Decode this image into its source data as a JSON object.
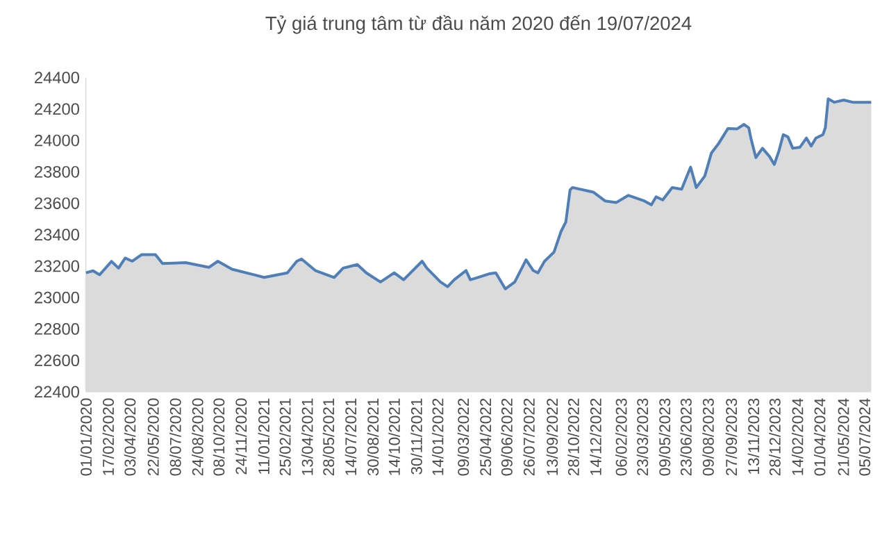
{
  "chart_data": {
    "type": "area",
    "title": "Tỷ giá trung tâm từ đầu năm 2020 đến 19/07/2024",
    "x": [
      "2020-01-01",
      "2020-01-16",
      "2020-01-30",
      "2020-02-24",
      "2020-03-10",
      "2020-03-24",
      "2020-04-08",
      "2020-04-28",
      "2020-05-27",
      "2020-06-11",
      "2020-07-30",
      "2020-09-17",
      "2020-10-06",
      "2020-11-05",
      "2020-12-24",
      "2021-01-12",
      "2021-03-02",
      "2021-03-22",
      "2021-04-01",
      "2021-04-30",
      "2021-06-09",
      "2021-06-28",
      "2021-07-28",
      "2021-08-16",
      "2021-09-15",
      "2021-10-14",
      "2021-11-03",
      "2021-12-12",
      "2021-12-22",
      "2022-01-20",
      "2022-02-04",
      "2022-02-18",
      "2022-03-15",
      "2022-03-24",
      "2022-04-03",
      "2022-05-03",
      "2022-05-17",
      "2022-06-06",
      "2022-06-26",
      "2022-07-20",
      "2022-08-04",
      "2022-08-14",
      "2022-08-28",
      "2022-09-17",
      "2022-10-02",
      "2022-10-12",
      "2022-10-21",
      "2022-10-26",
      "2022-12-09",
      "2023-01-03",
      "2023-01-27",
      "2023-02-21",
      "2023-03-27",
      "2023-04-11",
      "2023-04-21",
      "2023-05-05",
      "2023-05-25",
      "2023-06-14",
      "2023-07-03",
      "2023-07-15",
      "2023-08-02",
      "2023-08-16",
      "2023-08-31",
      "2023-09-20",
      "2023-10-09",
      "2023-10-24",
      "2023-11-03",
      "2023-11-08",
      "2023-11-18",
      "2023-12-02",
      "2023-12-17",
      "2023-12-27",
      "2024-01-06",
      "2024-01-15",
      "2024-01-25",
      "2024-02-04",
      "2024-02-19",
      "2024-03-04",
      "2024-03-14",
      "2024-03-24",
      "2024-04-08",
      "2024-04-13",
      "2024-04-19",
      "2024-05-02",
      "2024-05-22",
      "2024-06-10",
      "2024-07-15",
      "2024-07-19"
    ],
    "series": [
      {
        "color": "#4f7fb8",
        "values": [
          23157,
          23170,
          23145,
          23230,
          23187,
          23251,
          23231,
          23273,
          23273,
          23216,
          23222,
          23192,
          23231,
          23180,
          23143,
          23128,
          23157,
          23231,
          23245,
          23172,
          23128,
          23187,
          23210,
          23157,
          23099,
          23157,
          23113,
          23231,
          23187,
          23099,
          23069,
          23113,
          23172,
          23113,
          23122,
          23151,
          23157,
          23055,
          23099,
          23240,
          23172,
          23157,
          23231,
          23289,
          23421,
          23480,
          23685,
          23700,
          23671,
          23615,
          23605,
          23650,
          23615,
          23590,
          23641,
          23621,
          23700,
          23690,
          23830,
          23700,
          23773,
          23920,
          23979,
          24076,
          24073,
          24102,
          24081,
          24008,
          23891,
          23950,
          23897,
          23847,
          23935,
          24037,
          24022,
          23950,
          23956,
          24015,
          23964,
          24015,
          24037,
          24081,
          24265,
          24243,
          24257,
          24243,
          24243,
          24243
        ]
      }
    ],
    "xlim": [
      "2020-01-01",
      "2024-07-19"
    ],
    "xticks": [
      {
        "value": "2020-01-01",
        "label": "01/01/2020"
      },
      {
        "value": "2020-02-17",
        "label": "17/02/2020"
      },
      {
        "value": "2020-04-03",
        "label": "03/04/2020"
      },
      {
        "value": "2020-05-22",
        "label": "22/05/2020"
      },
      {
        "value": "2020-07-08",
        "label": "08/07/2020"
      },
      {
        "value": "2020-08-24",
        "label": "24/08/2020"
      },
      {
        "value": "2020-10-08",
        "label": "08/10/2020"
      },
      {
        "value": "2020-11-24",
        "label": "24/11/2020"
      },
      {
        "value": "2021-01-11",
        "label": "11/01/2021"
      },
      {
        "value": "2021-02-25",
        "label": "25/02/2021"
      },
      {
        "value": "2021-04-13",
        "label": "13/04/2021"
      },
      {
        "value": "2021-05-28",
        "label": "28/05/2021"
      },
      {
        "value": "2021-07-14",
        "label": "14/07/2021"
      },
      {
        "value": "2021-08-30",
        "label": "30/08/2021"
      },
      {
        "value": "2021-10-14",
        "label": "14/10/2021"
      },
      {
        "value": "2021-11-30",
        "label": "30/11/2021"
      },
      {
        "value": "2022-01-14",
        "label": "14/01/2022"
      },
      {
        "value": "2022-03-09",
        "label": "09/03/2022"
      },
      {
        "value": "2022-04-25",
        "label": "25/04/2022"
      },
      {
        "value": "2022-06-09",
        "label": "09/06/2022"
      },
      {
        "value": "2022-07-26",
        "label": "26/07/2022"
      },
      {
        "value": "2022-09-13",
        "label": "13/09/2022"
      },
      {
        "value": "2022-10-28",
        "label": "28/10/2022"
      },
      {
        "value": "2022-12-14",
        "label": "14/12/2022"
      },
      {
        "value": "2023-02-06",
        "label": "06/02/2023"
      },
      {
        "value": "2023-03-23",
        "label": "23/03/2023"
      },
      {
        "value": "2023-05-09",
        "label": "09/05/2023"
      },
      {
        "value": "2023-06-23",
        "label": "23/06/2023"
      },
      {
        "value": "2023-08-09",
        "label": "09/08/2023"
      },
      {
        "value": "2023-09-27",
        "label": "27/09/2023"
      },
      {
        "value": "2023-11-13",
        "label": "13/11/2023"
      },
      {
        "value": "2023-12-28",
        "label": "28/12/2023"
      },
      {
        "value": "2024-02-14",
        "label": "14/02/2024"
      },
      {
        "value": "2024-04-01",
        "label": "01/04/2024"
      },
      {
        "value": "2024-05-21",
        "label": "21/05/2024"
      },
      {
        "value": "2024-07-05",
        "label": "05/07/2024"
      }
    ],
    "ylim": [
      22400,
      24400
    ],
    "yticks": [
      22400,
      22600,
      22800,
      23000,
      23200,
      23400,
      23600,
      23800,
      24000,
      24200,
      24400
    ],
    "grid": false
  }
}
